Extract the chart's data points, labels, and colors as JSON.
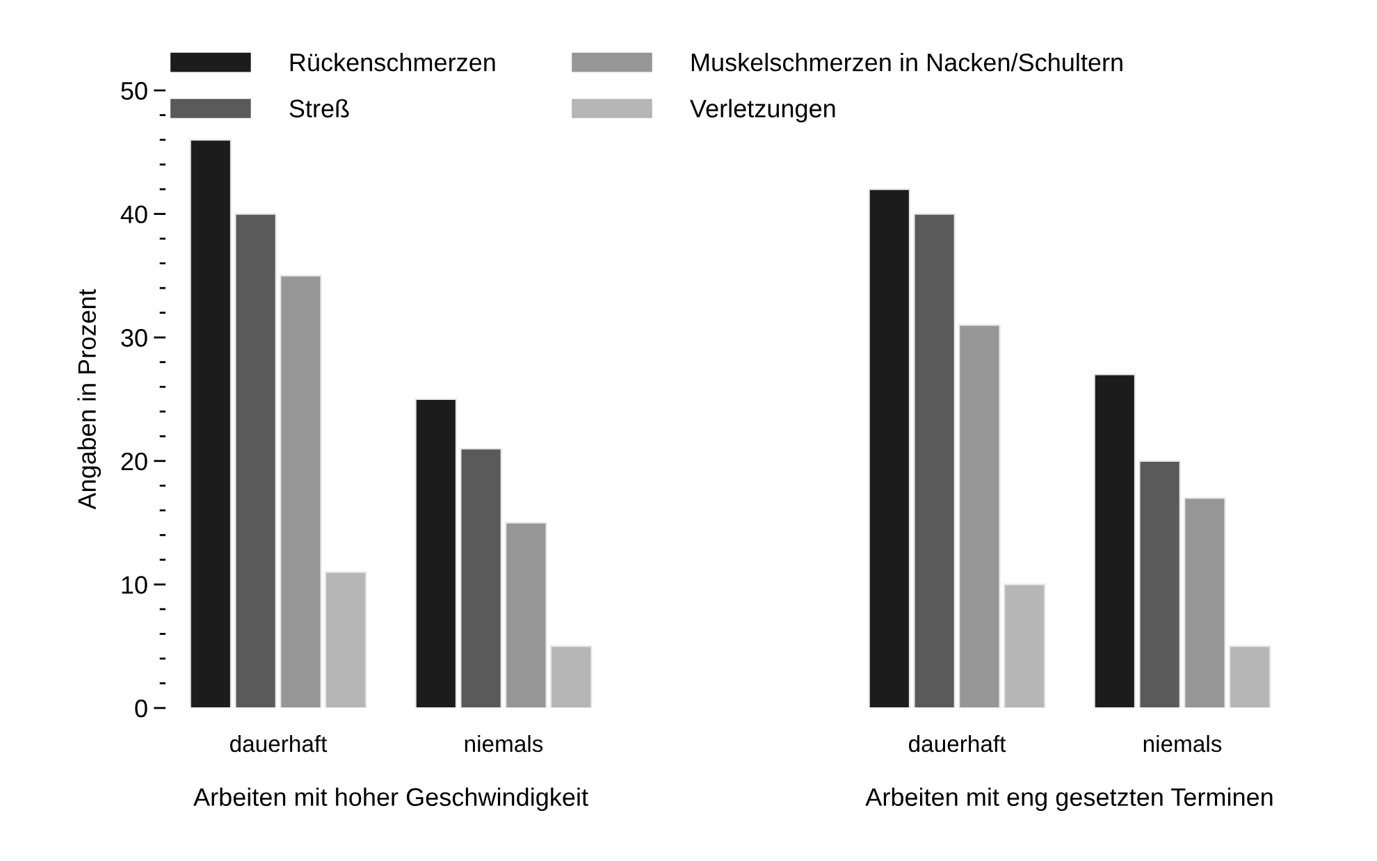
{
  "chart_data": [
    {
      "type": "bar",
      "categories": [
        "dauerhaft",
        "niemals"
      ],
      "xlabel": "Arbeiten mit hoher Geschwindigkeit",
      "ylabel": "Angaben in Prozent",
      "ylim": [
        0,
        50
      ],
      "yticks": [
        0,
        {
          "value": 2,
          "label": null
        },
        {
          "value": 4,
          "label": null
        },
        {
          "value": 6,
          "label": null
        },
        {
          "value": 8,
          "label": null
        },
        10,
        {
          "value": 12,
          "label": null
        },
        {
          "value": 14,
          "label": null
        },
        {
          "value": 16,
          "label": null
        },
        {
          "value": 18,
          "label": null
        },
        20,
        {
          "value": 22,
          "label": null
        },
        {
          "value": 24,
          "label": null
        },
        {
          "value": 26,
          "label": null
        },
        {
          "value": 28,
          "label": null
        },
        30,
        {
          "value": 32,
          "label": null
        },
        {
          "value": 34,
          "label": null
        },
        {
          "value": 36,
          "label": null
        },
        {
          "value": 38,
          "label": null
        },
        40,
        {
          "value": 42,
          "label": null
        },
        {
          "value": 44,
          "label": null
        },
        {
          "value": 46,
          "label": null
        },
        {
          "value": 48,
          "label": null
        },
        50
      ],
      "legend": "top",
      "grid": false,
      "series": [
        {
          "name": "Rückenschmerzen",
          "color": "#1c1c1c",
          "values": [
            46,
            25
          ]
        },
        {
          "name": "Streß",
          "color": "#5a5a5a",
          "values": [
            40,
            21
          ]
        },
        {
          "name": "Muskelschmerzen in Nacken/Schultern",
          "color": "#969696",
          "values": [
            35,
            15
          ]
        },
        {
          "name": "Verletzungen",
          "color": "#b6b6b6",
          "values": [
            11,
            5
          ]
        }
      ]
    },
    {
      "type": "bar",
      "categories": [
        "dauerhaft",
        "niemals"
      ],
      "xlabel": "Arbeiten mit eng gesetzten Terminen",
      "ylim": [
        0,
        50
      ],
      "tick_labels": "x",
      "grid": false,
      "series": [
        {
          "color": "#1c1c1c",
          "values": [
            42,
            27
          ]
        },
        {
          "color": "#5a5a5a",
          "values": [
            40,
            20
          ]
        },
        {
          "color": "#969696",
          "values": [
            31,
            17
          ]
        },
        {
          "color": "#b6b6b6",
          "values": [
            10,
            5
          ]
        }
      ]
    }
  ]
}
